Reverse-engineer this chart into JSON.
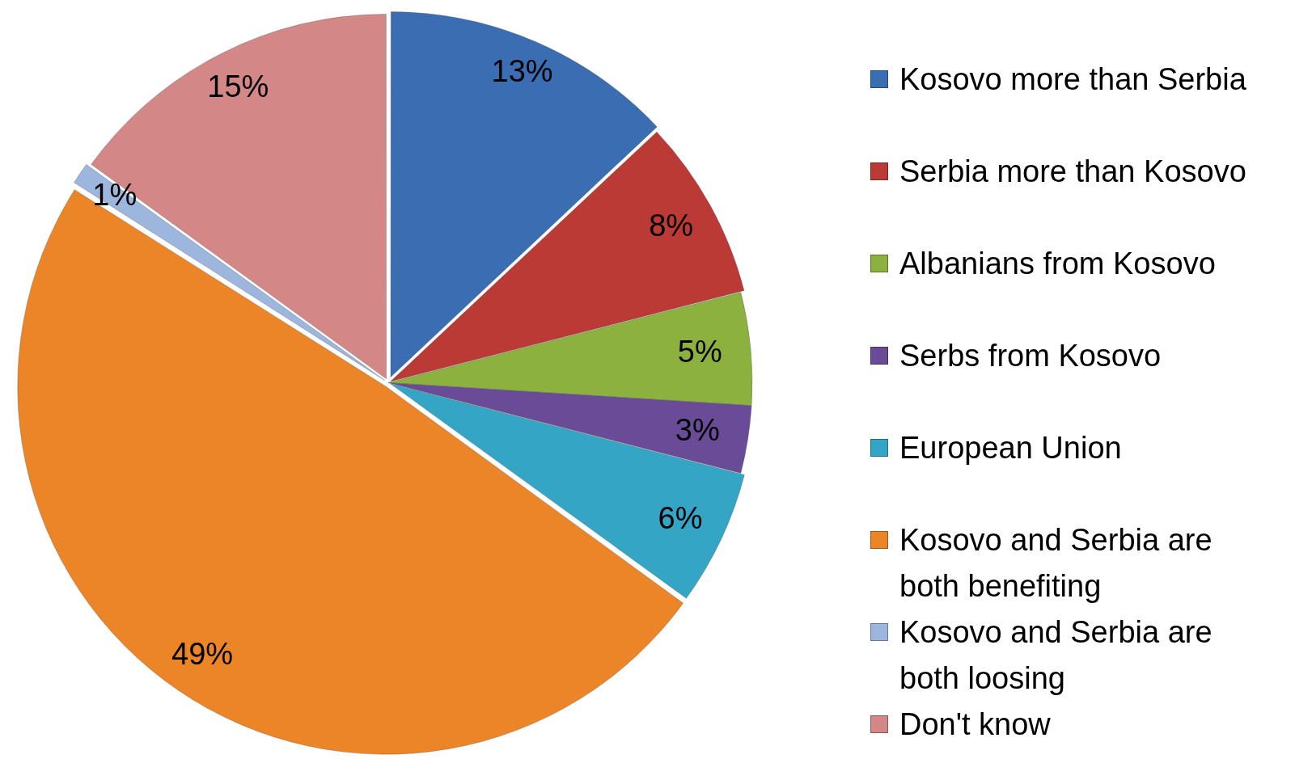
{
  "chart_data": {
    "type": "pie",
    "categories": [
      "Kosovo more than Serbia",
      "Serbia more than Kosovo",
      "Albanians from Kosovo",
      "Serbs from Kosovo",
      "European Union",
      "Kosovo and Serbia are both benefiting",
      "Kosovo and Serbia are both loosing",
      "Don't know"
    ],
    "values": [
      13,
      8,
      5,
      3,
      6,
      49,
      1,
      15
    ],
    "value_labels": [
      "13%",
      "8%",
      "5%",
      "3%",
      "6%",
      "49%",
      "1%",
      "15%"
    ],
    "colors": [
      "#3a6db2",
      "#bb3a36",
      "#8cb13f",
      "#6a4b98",
      "#35a5c6",
      "#ec8527",
      "#9db6de",
      "#d38887"
    ],
    "legend": "right"
  }
}
